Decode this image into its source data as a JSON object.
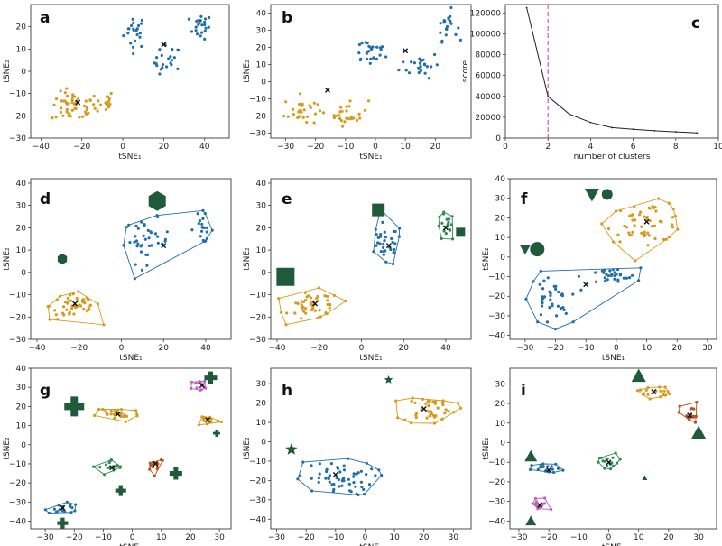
{
  "colors": {
    "blue": "#1f6fa8",
    "orange": "#d89a1c",
    "green": "#2e8b57",
    "pink": "#c060c0",
    "red": "#b3541e",
    "marker": "#1f5a3a",
    "line": "#222222",
    "vline": "#c060c0"
  },
  "chart_data": [
    {
      "id": "a",
      "letter": "a",
      "type": "scatter",
      "xlabel": "tSNE₁",
      "ylabel": "tSNE₂",
      "xlim": [
        -45,
        52
      ],
      "ylim": [
        -30,
        30
      ],
      "xticks": [
        -40,
        -20,
        0,
        20,
        40
      ],
      "yticks": [
        -30,
        -20,
        -10,
        0,
        10,
        20
      ],
      "clusters": [
        {
          "color": "blue",
          "center": [
            20,
            12
          ],
          "blobs": [
            [
              6,
              18,
              5,
              7,
              22
            ],
            [
              22,
              4,
              6,
              7,
              22
            ],
            [
              38,
              20,
              5,
              5,
              22
            ]
          ]
        },
        {
          "color": "orange",
          "center": [
            -22,
            -14
          ],
          "blobs": [
            [
              -24,
              -16,
              10,
              6,
              50
            ],
            [
              -9,
              -14,
              4,
              5,
              14
            ]
          ]
        }
      ]
    },
    {
      "id": "b",
      "letter": "b",
      "type": "scatter",
      "xlabel": "tSNE₁",
      "ylabel": "tSNE₂",
      "xlim": [
        -35,
        32
      ],
      "ylim": [
        -33,
        45
      ],
      "xticks": [
        -30,
        -20,
        -10,
        0,
        10,
        20
      ],
      "yticks": [
        -30,
        -20,
        -10,
        0,
        10,
        20,
        30,
        40
      ],
      "clusters": [
        {
          "color": "blue",
          "center": [
            10,
            18
          ],
          "blobs": [
            [
              -2,
              18,
              6,
              8,
              25
            ],
            [
              15,
              10,
              6,
              7,
              25
            ],
            [
              24,
              33,
              3,
              8,
              20
            ]
          ]
        },
        {
          "color": "orange",
          "center": [
            -16,
            -5
          ],
          "blobs": [
            [
              -25,
              -17,
              5,
              8,
              28
            ],
            [
              -9,
              -18,
              6,
              7,
              26
            ]
          ]
        }
      ]
    },
    {
      "id": "c",
      "letter": "c",
      "type": "line",
      "xlabel": "number of clusters",
      "ylabel": "score",
      "xlim": [
        0,
        10
      ],
      "ylim": [
        0,
        128000
      ],
      "xticks": [
        0,
        2,
        4,
        6,
        8,
        10
      ],
      "yticks": [
        0,
        20000,
        40000,
        60000,
        80000,
        100000,
        120000
      ],
      "x": [
        1,
        2,
        3,
        4,
        5,
        6,
        7,
        8,
        9
      ],
      "y": [
        125000,
        40000,
        23000,
        15000,
        10000,
        8500,
        7000,
        6000,
        5000
      ],
      "vline": 2
    },
    {
      "id": "d",
      "letter": "d",
      "type": "scatter",
      "xlabel": "tSNE₁",
      "ylabel": "tSNE₂",
      "xlim": [
        -43,
        52
      ],
      "ylim": [
        -30,
        42
      ],
      "xticks": [
        -40,
        -20,
        0,
        20,
        40
      ],
      "yticks": [
        -30,
        -20,
        -10,
        0,
        10,
        20,
        30,
        40
      ],
      "clusters": [
        {
          "color": "blue",
          "center": [
            20,
            12
          ],
          "blobs": [
            [
              12,
              14,
              10,
              9,
              40
            ],
            [
              38,
              20,
              5,
              6,
              20
            ]
          ]
        },
        {
          "color": "orange",
          "center": [
            -22,
            -14
          ],
          "blobs": [
            [
              -22,
              -15,
              11,
              6,
              50
            ]
          ]
        }
      ],
      "markers": [
        {
          "shape": "hexagon",
          "x": 17,
          "y": 32,
          "size": 11
        },
        {
          "shape": "hexagon",
          "x": -28,
          "y": 6,
          "size": 6
        }
      ]
    },
    {
      "id": "e",
      "letter": "e",
      "type": "scatter",
      "xlabel": "tSNE₁",
      "ylabel": "tSNE₂",
      "xlim": [
        -43,
        52
      ],
      "ylim": [
        -30,
        42
      ],
      "xticks": [
        -40,
        -20,
        0,
        20,
        40
      ],
      "yticks": [
        -30,
        -20,
        -10,
        0,
        10,
        20,
        30,
        40
      ],
      "clusters": [
        {
          "color": "blue",
          "center": [
            13,
            12
          ],
          "blobs": [
            [
              11,
              12,
              8,
              9,
              35
            ]
          ]
        },
        {
          "color": "green",
          "center": [
            40,
            20
          ],
          "blobs": [
            [
              40,
              20,
              4,
              6,
              18
            ]
          ]
        },
        {
          "color": "orange",
          "center": [
            -22,
            -14
          ],
          "blobs": [
            [
              -22,
              -15,
              11,
              6,
              50
            ]
          ]
        }
      ],
      "markers": [
        {
          "shape": "square",
          "x": 8,
          "y": 28,
          "size": 7
        },
        {
          "shape": "square",
          "x": 47,
          "y": 18,
          "size": 5
        },
        {
          "shape": "square",
          "x": -36,
          "y": -2,
          "size": 10
        }
      ]
    },
    {
      "id": "f",
      "letter": "f",
      "type": "scatter",
      "xlabel": "tSNE₁",
      "ylabel": "tSNE₂",
      "xlim": [
        -35,
        33
      ],
      "ylim": [
        -42,
        40
      ],
      "xticks": [
        -30,
        -20,
        -10,
        0,
        10,
        20,
        30
      ],
      "yticks": [
        -40,
        -30,
        -20,
        -10,
        0,
        10,
        20,
        30,
        40
      ],
      "clusters": [
        {
          "color": "orange",
          "center": [
            10,
            18
          ],
          "blobs": [
            [
              10,
              18,
              12,
              9,
              60
            ]
          ]
        },
        {
          "color": "blue",
          "center": [
            -10,
            -14
          ],
          "blobs": [
            [
              -22,
              -22,
              6,
              12,
              40
            ],
            [
              -2,
              -10,
              9,
              4,
              30
            ]
          ]
        }
      ],
      "markers": [
        {
          "shape": "triangle-down",
          "x": -8,
          "y": 32,
          "size": 8
        },
        {
          "shape": "circle",
          "x": -3,
          "y": 32,
          "size": 6
        },
        {
          "shape": "triangle-down",
          "x": -30,
          "y": 4,
          "size": 6
        },
        {
          "shape": "circle",
          "x": -26,
          "y": 4,
          "size": 8
        }
      ]
    },
    {
      "id": "g",
      "letter": "g",
      "type": "scatter",
      "xlabel": "tSNE₁",
      "ylabel": "tSNE₂",
      "xlim": [
        -35,
        34
      ],
      "ylim": [
        -44,
        40
      ],
      "xticks": [
        -30,
        -20,
        -10,
        0,
        10,
        20,
        30
      ],
      "yticks": [
        -40,
        -30,
        -20,
        -10,
        0,
        10,
        20,
        30,
        40
      ],
      "clusters": [
        {
          "color": "orange",
          "center": [
            -5,
            16
          ],
          "blobs": [
            [
              -5,
              16,
              7,
              4,
              30
            ]
          ]
        },
        {
          "color": "pink",
          "center": [
            24,
            31
          ],
          "blobs": [
            [
              24,
              31,
              4,
              3,
              14
            ]
          ]
        },
        {
          "color": "orange",
          "center": [
            26,
            13
          ],
          "blobs": [
            [
              26,
              13,
              4,
              3,
              14
            ]
          ]
        },
        {
          "color": "red",
          "center": [
            8,
            -10
          ],
          "blobs": [
            [
              8,
              -10,
              3,
              4,
              14
            ]
          ]
        },
        {
          "color": "green",
          "center": [
            -7,
            -12
          ],
          "blobs": [
            [
              -7,
              -12,
              4,
              4,
              18
            ]
          ]
        },
        {
          "color": "blue",
          "center": [
            -24,
            -33
          ],
          "blobs": [
            [
              -24,
              -33,
              5,
              3,
              18
            ]
          ]
        }
      ],
      "markers": [
        {
          "shape": "plus",
          "x": -20,
          "y": 20,
          "size": 11
        },
        {
          "shape": "plus",
          "x": 27,
          "y": 35,
          "size": 7
        },
        {
          "shape": "plus",
          "x": 29,
          "y": 6,
          "size": 4
        },
        {
          "shape": "plus",
          "x": 15,
          "y": -15,
          "size": 7
        },
        {
          "shape": "plus",
          "x": -4,
          "y": -24,
          "size": 6
        },
        {
          "shape": "plus",
          "x": -24,
          "y": -41,
          "size": 6
        }
      ]
    },
    {
      "id": "h",
      "letter": "h",
      "type": "scatter",
      "xlabel": "tSNE₁",
      "ylabel": "tSNE₂",
      "xlim": [
        -32,
        36
      ],
      "ylim": [
        -45,
        38
      ],
      "xticks": [
        -30,
        -20,
        -10,
        0,
        10,
        20,
        30
      ],
      "yticks": [
        -40,
        -30,
        -20,
        -10,
        0,
        10,
        20,
        30
      ],
      "clusters": [
        {
          "color": "orange",
          "center": [
            20,
            17
          ],
          "blobs": [
            [
              22,
              17,
              8,
              7,
              45
            ]
          ]
        },
        {
          "color": "blue",
          "center": [
            -10,
            -17
          ],
          "blobs": [
            [
              -10,
              -19,
              12,
              8,
              60
            ]
          ]
        }
      ],
      "markers": [
        {
          "shape": "star",
          "x": 8,
          "y": 32,
          "size": 5
        },
        {
          "shape": "star",
          "x": -25,
          "y": -4,
          "size": 7
        }
      ]
    },
    {
      "id": "i",
      "letter": "i",
      "type": "scatter",
      "xlabel": "tSNE₁",
      "ylabel": "tSNE₂",
      "xlim": [
        -33,
        36
      ],
      "ylim": [
        -44,
        38
      ],
      "xticks": [
        -30,
        -20,
        -10,
        0,
        10,
        20,
        30
      ],
      "yticks": [
        -40,
        -30,
        -20,
        -10,
        0,
        10,
        20,
        30
      ],
      "clusters": [
        {
          "color": "orange",
          "center": [
            15,
            26
          ],
          "blobs": [
            [
              15,
              26,
              5,
              3,
              20
            ]
          ]
        },
        {
          "color": "red",
          "center": [
            27,
            14
          ],
          "blobs": [
            [
              27,
              14,
              3,
              6,
              18
            ]
          ]
        },
        {
          "color": "green",
          "center": [
            0,
            -10
          ],
          "blobs": [
            [
              0,
              -10,
              5,
              4,
              18
            ]
          ]
        },
        {
          "color": "blue",
          "center": [
            -20,
            -14
          ],
          "blobs": [
            [
              -20,
              -14,
              5,
              3,
              18
            ]
          ]
        },
        {
          "color": "pink",
          "center": [
            -23,
            -32
          ],
          "blobs": [
            [
              -23,
              -32,
              3,
              4,
              14
            ]
          ]
        }
      ],
      "markers": [
        {
          "shape": "triangle-up",
          "x": 10,
          "y": 34,
          "size": 8
        },
        {
          "shape": "triangle-up",
          "x": -26,
          "y": -7,
          "size": 7
        },
        {
          "shape": "triangle-up",
          "x": 30,
          "y": 5,
          "size": 8
        },
        {
          "shape": "triangle-up",
          "x": 12,
          "y": -18,
          "size": 3
        },
        {
          "shape": "triangle-up",
          "x": -26,
          "y": -40,
          "size": 6
        }
      ]
    }
  ]
}
